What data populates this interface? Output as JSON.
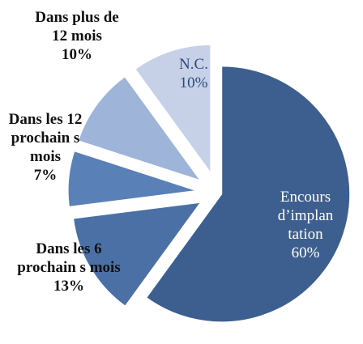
{
  "chart_data": {
    "type": "pie",
    "categories": [
      "Encours d’implan tation",
      "Dans les 6 prochain s mois",
      "Dans les 12 prochain s mois",
      "Dans plus de 12 mois",
      "N.C."
    ],
    "values": [
      60,
      13,
      7,
      10,
      10
    ],
    "value_labels": [
      "60%",
      "13%",
      "7%",
      "10%",
      "10%"
    ],
    "colors": [
      "#3d5f90",
      "#4a70a6",
      "#5a80b8",
      "#9fb4d9",
      "#c6d1e8"
    ]
  }
}
